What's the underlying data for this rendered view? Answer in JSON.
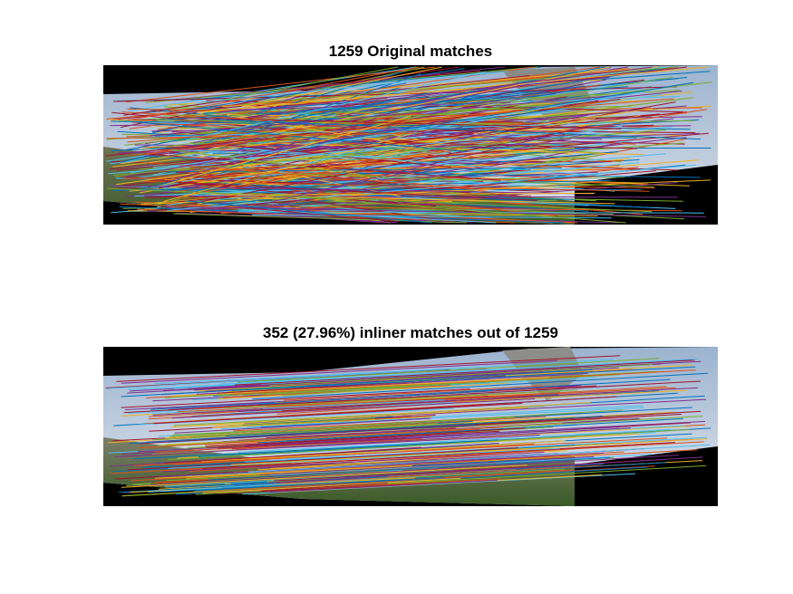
{
  "figure": {
    "top": {
      "title": "1259 Original matches"
    },
    "bottom": {
      "title": "352 (27.96%) inliner matches out of 1259"
    }
  },
  "colors": {
    "background": "#ffffff",
    "panel": "#000000",
    "line_palette": [
      "#0072BD",
      "#D95319",
      "#EDB120",
      "#7E2F8E",
      "#77AC30",
      "#4DBEEE",
      "#A2142F"
    ]
  }
}
